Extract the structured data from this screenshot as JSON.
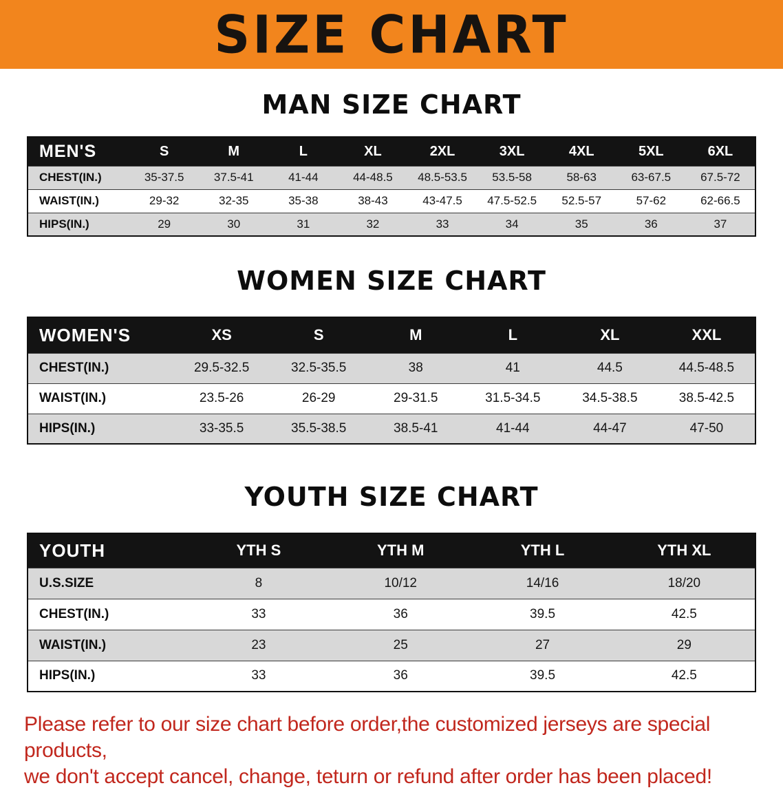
{
  "banner": {
    "title": "SIZE CHART",
    "bg_color": "#f2851d",
    "text_color": "#171310"
  },
  "sections": [
    {
      "heading": "MAN SIZE CHART",
      "table": {
        "label": "MEN'S",
        "columns": [
          "S",
          "M",
          "L",
          "XL",
          "2XL",
          "3XL",
          "4XL",
          "5XL",
          "6XL"
        ],
        "rows": [
          {
            "label": "CHEST(IN.)",
            "values": [
              "35-37.5",
              "37.5-41",
              "41-44",
              "44-48.5",
              "48.5-53.5",
              "53.5-58",
              "58-63",
              "63-67.5",
              "67.5-72"
            ]
          },
          {
            "label": "WAIST(IN.)",
            "values": [
              "29-32",
              "32-35",
              "35-38",
              "38-43",
              "43-47.5",
              "47.5-52.5",
              "52.5-57",
              "57-62",
              "62-66.5"
            ]
          },
          {
            "label": "HIPS(IN.)",
            "values": [
              "29",
              "30",
              "31",
              "32",
              "33",
              "34",
              "35",
              "36",
              "37"
            ]
          }
        ]
      }
    },
    {
      "heading": "WOMEN SIZE CHART",
      "table": {
        "label": "WOMEN'S",
        "columns": [
          "XS",
          "S",
          "M",
          "L",
          "XL",
          "XXL"
        ],
        "rows": [
          {
            "label": "CHEST(IN.)",
            "values": [
              "29.5-32.5",
              "32.5-35.5",
              "38",
              "41",
              "44.5",
              "44.5-48.5"
            ]
          },
          {
            "label": "WAIST(IN.)",
            "values": [
              "23.5-26",
              "26-29",
              "29-31.5",
              "31.5-34.5",
              "34.5-38.5",
              "38.5-42.5"
            ]
          },
          {
            "label": "HIPS(IN.)",
            "values": [
              "33-35.5",
              "35.5-38.5",
              "38.5-41",
              "41-44",
              "44-47",
              "47-50"
            ]
          }
        ]
      }
    },
    {
      "heading": "YOUTH SIZE CHART",
      "table": {
        "label": "YOUTH",
        "columns": [
          "YTH S",
          "YTH M",
          "YTH L",
          "YTH XL"
        ],
        "rows": [
          {
            "label": "U.S.SIZE",
            "values": [
              "8",
              "10/12",
              "14/16",
              "18/20"
            ]
          },
          {
            "label": "CHEST(IN.)",
            "values": [
              "33",
              "36",
              "39.5",
              "42.5"
            ]
          },
          {
            "label": "WAIST(IN.)",
            "values": [
              "23",
              "25",
              "27",
              "29"
            ]
          },
          {
            "label": "HIPS(IN.)",
            "values": [
              "33",
              "36",
              "39.5",
              "42.5"
            ]
          }
        ]
      }
    }
  ],
  "disclaimer": {
    "line1": "Please refer to our size chart before order,the customized jerseys are special products,",
    "line2": "we don't accept cancel, change, teturn or refund after order has been placed!",
    "color": "#c1271d"
  }
}
